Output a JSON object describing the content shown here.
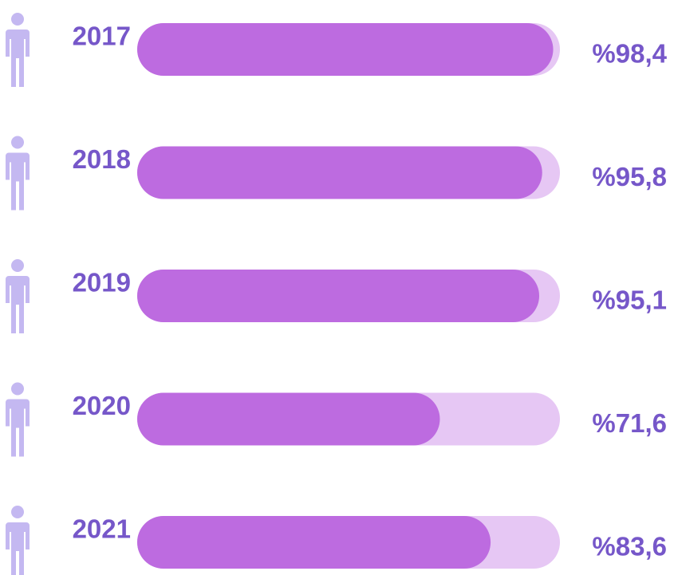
{
  "chart_data": {
    "type": "bar",
    "orientation": "horizontal",
    "categories": [
      "2017",
      "2018",
      "2019",
      "2020",
      "2021"
    ],
    "values": [
      98.4,
      95.8,
      95.1,
      71.6,
      83.6
    ],
    "value_labels": [
      "%98,4",
      "%95,8",
      "%95,1",
      "%71,6",
      "%83,6"
    ],
    "xlim": [
      0,
      100
    ],
    "color": "#bd6be0",
    "track_color": "#e6c7f4",
    "icon_color": "#c4b8f1"
  }
}
